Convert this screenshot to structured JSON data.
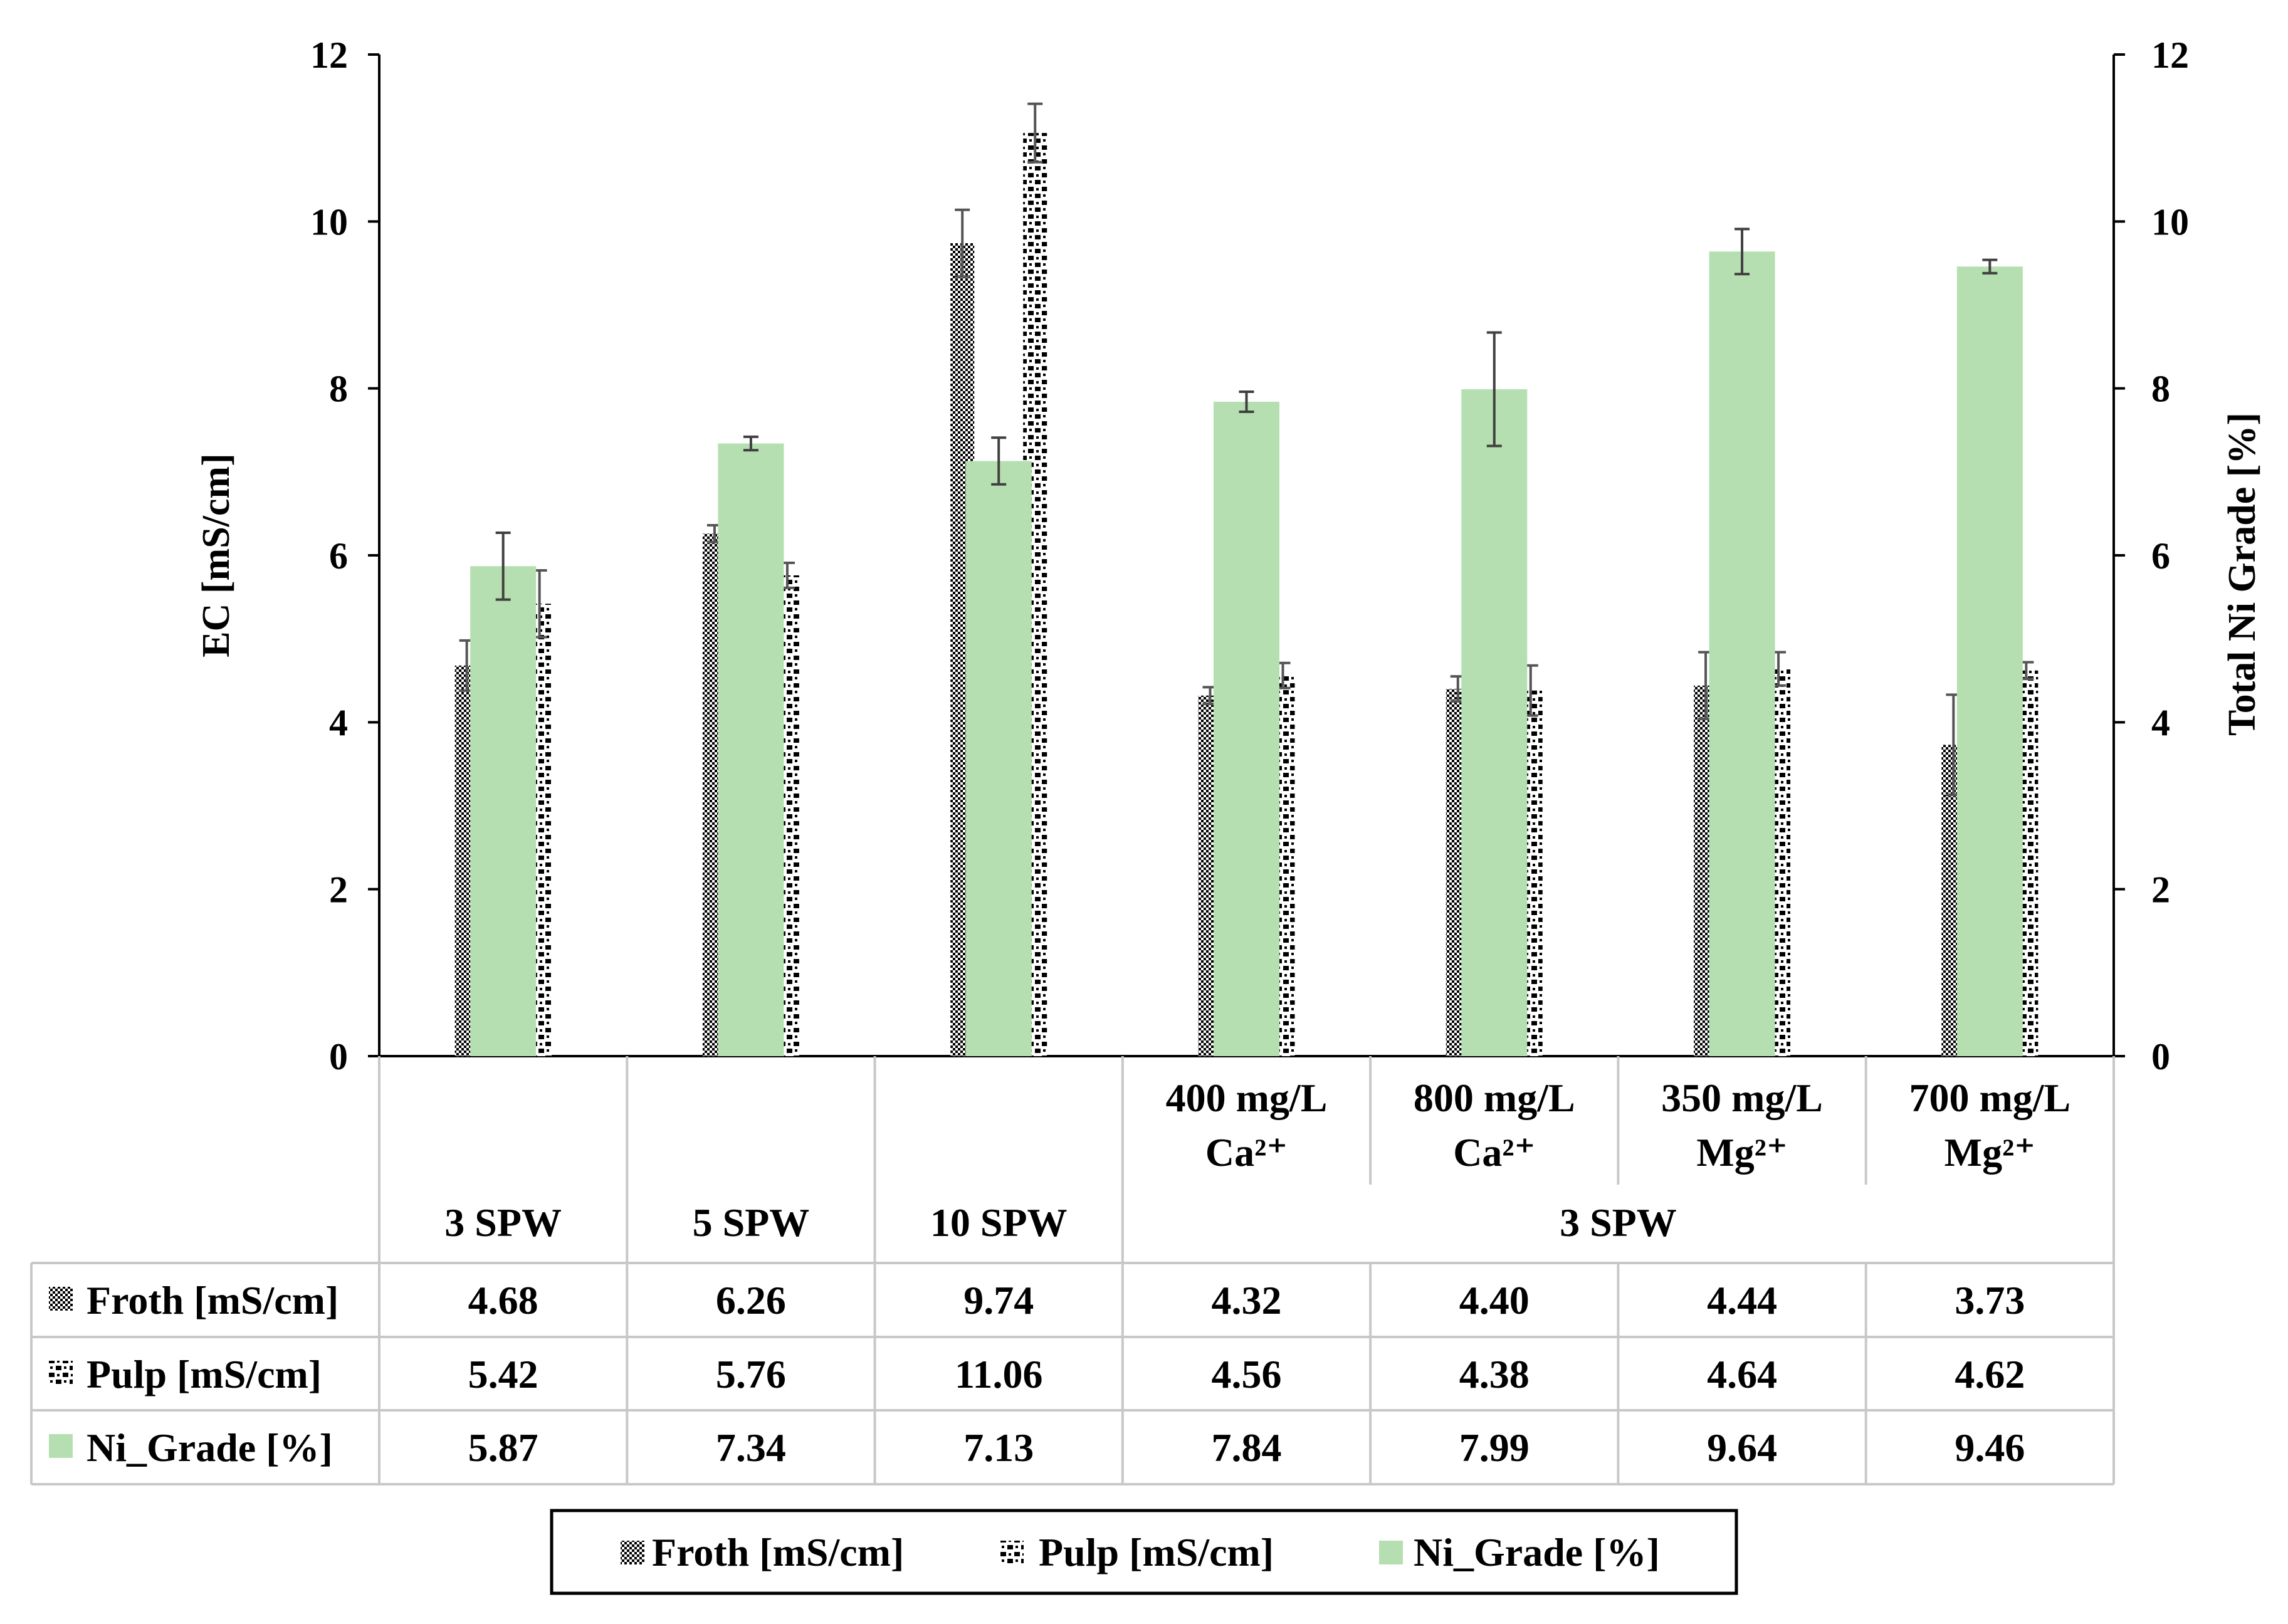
{
  "chart_data": {
    "type": "bar",
    "categories": [
      {
        "line1": "",
        "line2": "",
        "group": "3 SPW"
      },
      {
        "line1": "",
        "line2": "",
        "group": "5 SPW"
      },
      {
        "line1": "",
        "line2": "",
        "group": "10 SPW"
      },
      {
        "line1": "400 mg/L",
        "line2": "Ca²⁺",
        "group": "3 SPW"
      },
      {
        "line1": "800 mg/L",
        "line2": "Ca²⁺",
        "group": "3 SPW"
      },
      {
        "line1": "350 mg/L",
        "line2": "Mg²⁺",
        "group": "3 SPW"
      },
      {
        "line1": "700 mg/L",
        "line2": "Mg²⁺",
        "group": "3 SPW"
      }
    ],
    "group_labels": [
      "3 SPW",
      "5 SPW",
      "10 SPW",
      "3 SPW"
    ],
    "series": [
      {
        "name": "Froth [mS/cm]",
        "axis": "left",
        "pattern": "dense-dots",
        "values": [
          4.68,
          6.26,
          9.74,
          4.32,
          4.4,
          4.44,
          3.73
        ],
        "labels": [
          "4.68",
          "6.26",
          "9.74",
          "4.32",
          "4.40",
          "4.44",
          "3.73"
        ],
        "errors": [
          0.3,
          0.1,
          0.4,
          0.1,
          0.15,
          0.4,
          0.6
        ]
      },
      {
        "name": "Pulp [mS/cm]",
        "axis": "left",
        "pattern": "sparse-dots",
        "values": [
          5.42,
          5.76,
          11.06,
          4.56,
          4.38,
          4.64,
          4.62
        ],
        "labels": [
          "5.42",
          "5.76",
          "11.06",
          "4.56",
          "4.38",
          "4.64",
          "4.62"
        ],
        "errors": [
          0.4,
          0.15,
          0.35,
          0.15,
          0.3,
          0.2,
          0.1
        ]
      },
      {
        "name": "Ni_Grade [%]",
        "axis": "right",
        "color": "#b6dfb1",
        "values": [
          5.87,
          7.34,
          7.13,
          7.84,
          7.99,
          9.64,
          9.46
        ],
        "labels": [
          "5.87",
          "7.34",
          "7.13",
          "7.84",
          "7.99",
          "9.64",
          "9.46"
        ],
        "errors": [
          0.4,
          0.08,
          0.28,
          0.12,
          0.68,
          0.27,
          0.08
        ]
      }
    ],
    "ylabel_left": "EC [mS/cm]",
    "ylabel_right": "Total Ni Grade [%]",
    "ylim_left": [
      0,
      12
    ],
    "ylim_right": [
      0,
      12
    ],
    "yticks": [
      "0",
      "2",
      "4",
      "6",
      "8",
      "10",
      "12"
    ],
    "legend": [
      "Froth [mS/cm]",
      "Pulp [mS/cm]",
      "Ni_Grade [%]"
    ],
    "legend_position": "bottom-center",
    "data_table": true
  }
}
